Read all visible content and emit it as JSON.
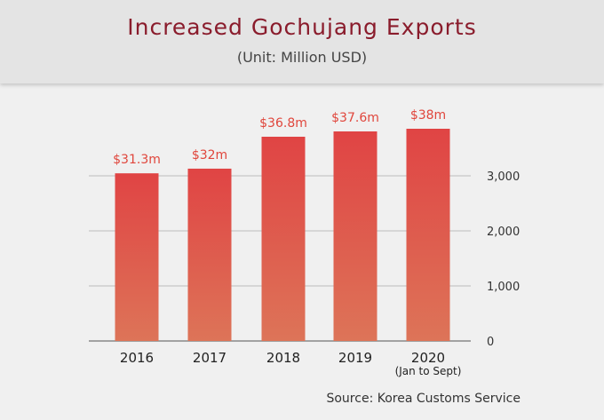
{
  "header": {
    "title": "Increased Gochujang Exports",
    "subtitle": "(Unit: Million USD)"
  },
  "source": "Source: Korea Customs Service",
  "chart_data": {
    "type": "bar",
    "title": "Increased Gochujang Exports",
    "subtitle": "(Unit: Million USD)",
    "categories": [
      "2016",
      "2017",
      "2018",
      "2019",
      "2020"
    ],
    "category_sublabels": [
      "",
      "",
      "",
      "",
      "(Jan to Sept)"
    ],
    "values": [
      31.3,
      32,
      36.8,
      37.6,
      38
    ],
    "data_labels": [
      "$31.3m",
      "$32m",
      "$36.8m",
      "$37.6m",
      "$38m"
    ],
    "y_axis_ticks": [
      0,
      1000,
      2000,
      3000
    ],
    "y_axis_tick_labels": [
      "0",
      "1,000",
      "2,000",
      "3,000"
    ],
    "y_axis_position": "right",
    "grid": true,
    "colors": {
      "bar_top": "#e04444",
      "bar_bottom": "#dd7458",
      "label": "#e0463c"
    }
  }
}
